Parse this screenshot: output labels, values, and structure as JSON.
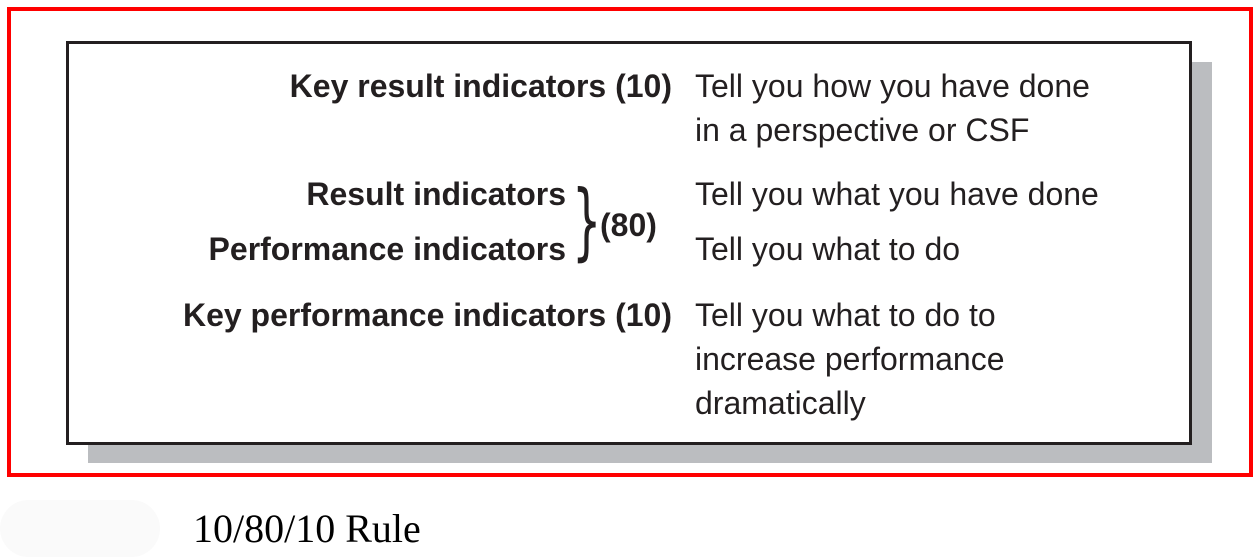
{
  "diagram": {
    "rows": [
      {
        "label": "Key result indicators (10)",
        "description": [
          "Tell you how you have done",
          "in a perspective or CSF"
        ]
      },
      {
        "label": "Result indicators",
        "description": [
          "Tell you what you have done"
        ]
      },
      {
        "label": "Performance indicators",
        "description": [
          "Tell you what to do"
        ]
      },
      {
        "label": "Key performance indicators (10)",
        "description": [
          "Tell you what to do to",
          "increase performance",
          "dramatically"
        ]
      }
    ],
    "group_count": "(80)",
    "frame_color": "#ff0000",
    "shadow_color": "#bbbdc0"
  },
  "caption": "10/80/10 Rule"
}
